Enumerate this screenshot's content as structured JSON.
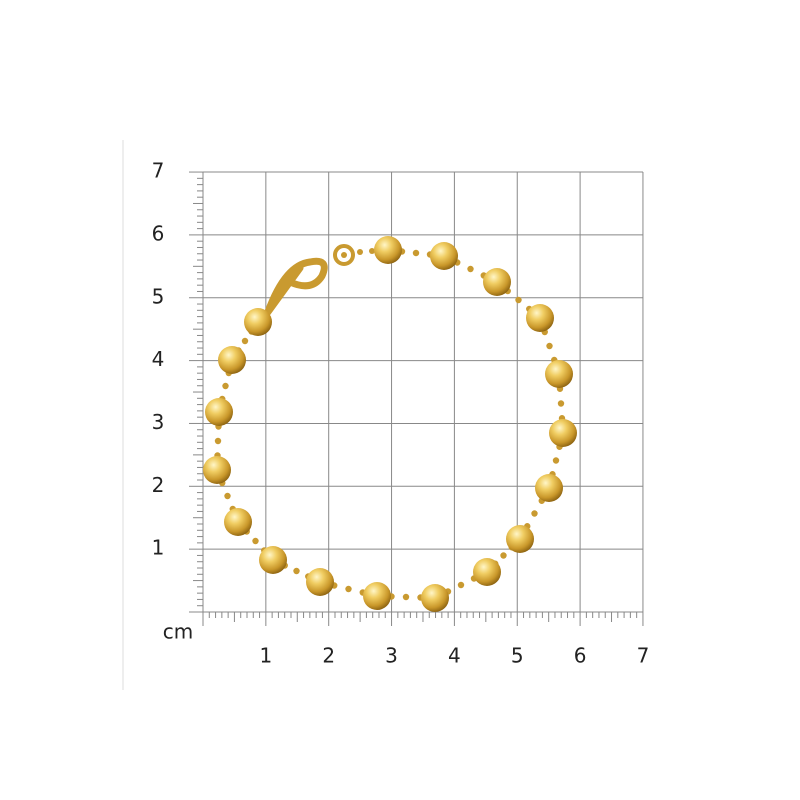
{
  "grid": {
    "unit": "cm",
    "x_labels": [
      1,
      2,
      3,
      4,
      5,
      6,
      7
    ],
    "y_labels": [
      1,
      2,
      3,
      4,
      5,
      6,
      7
    ]
  }
}
